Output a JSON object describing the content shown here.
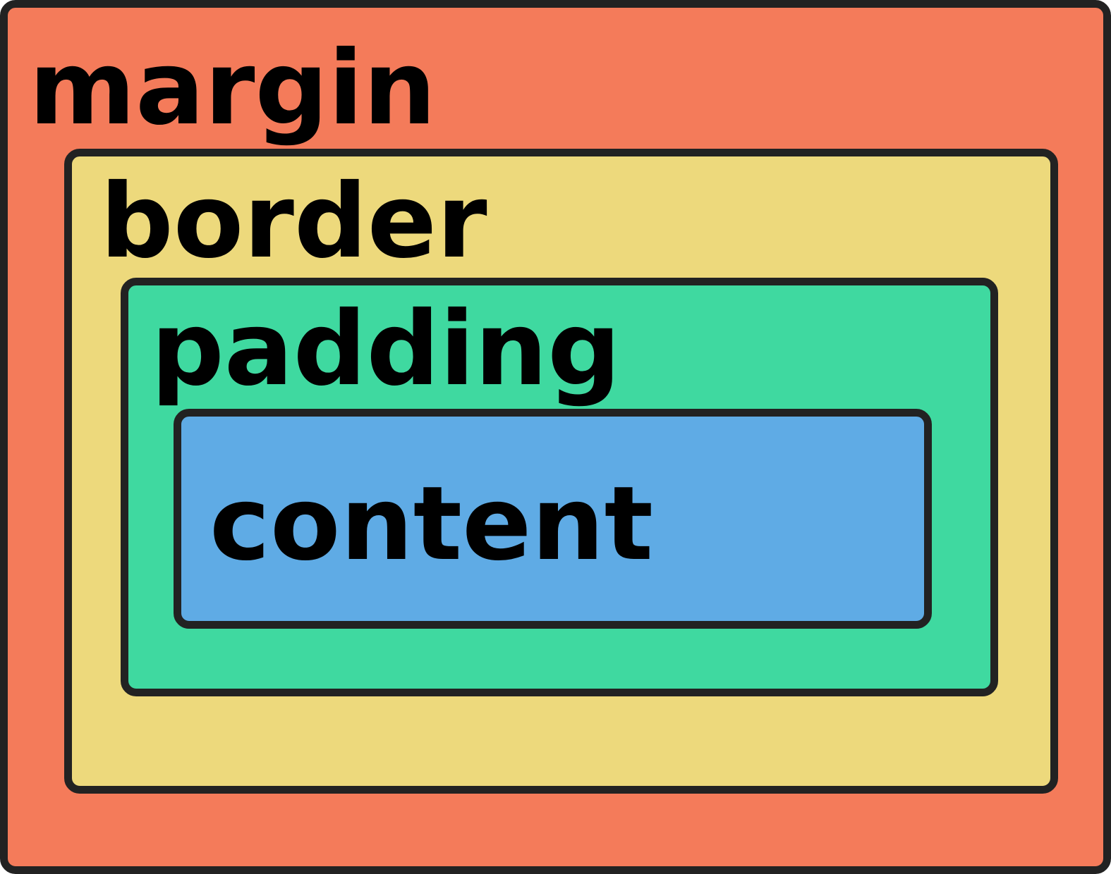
{
  "layers": {
    "margin": {
      "label": "margin",
      "color": "#F47B5A"
    },
    "border": {
      "label": "border",
      "color": "#EDD97C"
    },
    "padding": {
      "label": "padding",
      "color": "#3FD9A0"
    },
    "content": {
      "label": "content",
      "color": "#5FABE5"
    }
  },
  "outline_color": "#222222"
}
